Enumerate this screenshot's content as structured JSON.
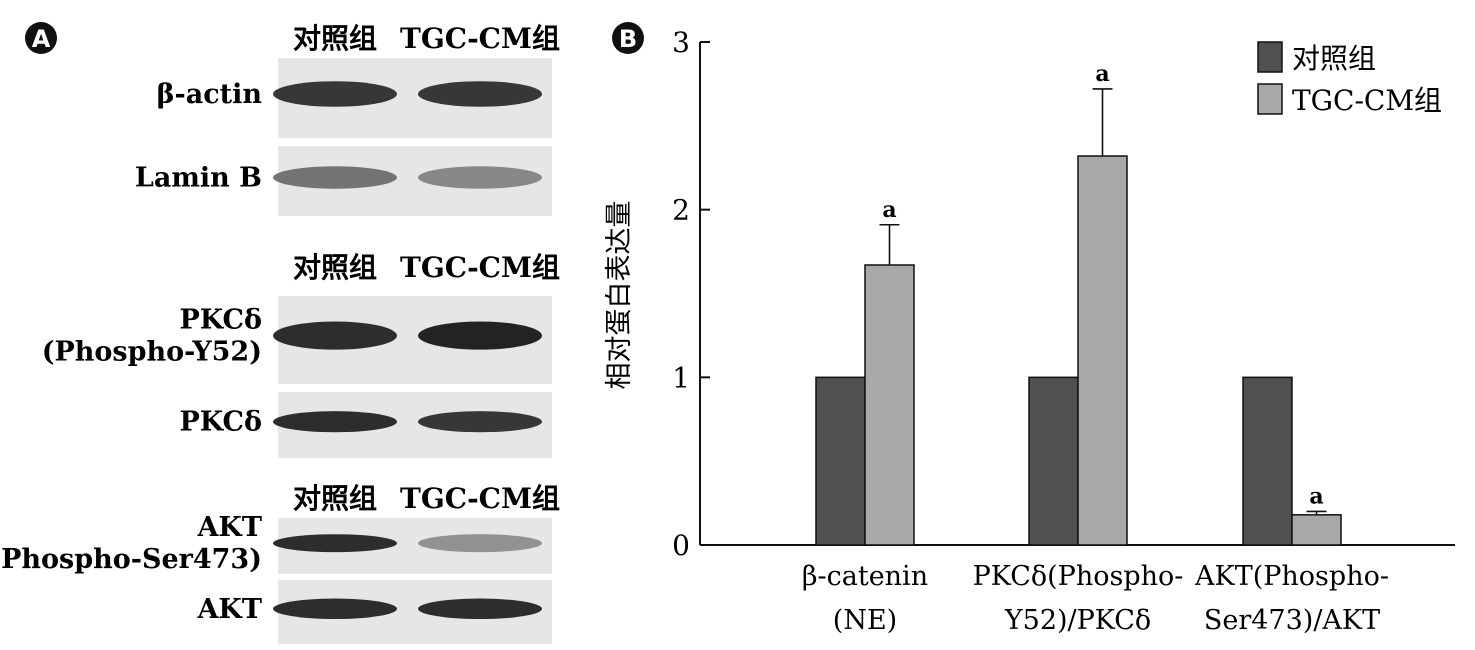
{
  "panel_a": {
    "label": "A",
    "groups": [
      {
        "header": [
          "对照组",
          "TGC-CM组"
        ],
        "blots": [
          {
            "label": [
              "β-actin"
            ],
            "intensity": [
              0.85,
              0.85
            ]
          },
          {
            "label": [
              "Lamin B"
            ],
            "intensity": [
              0.55,
              0.45
            ]
          }
        ]
      },
      {
        "header": [
          "对照组",
          "TGC-CM组"
        ],
        "blots": [
          {
            "label": [
              "PKCδ",
              "(Phospho-Y52)"
            ],
            "intensity": [
              0.9,
              0.95
            ]
          },
          {
            "label": [
              "PKCδ"
            ],
            "intensity": [
              0.9,
              0.85
            ]
          }
        ]
      },
      {
        "header": [
          "对照组",
          "TGC-CM组"
        ],
        "blots": [
          {
            "label": [
              "AKT",
              "(Phospho-Ser473)"
            ],
            "intensity": [
              0.9,
              0.4
            ]
          },
          {
            "label": [
              "AKT"
            ],
            "intensity": [
              0.9,
              0.9
            ]
          }
        ]
      }
    ]
  },
  "chart_data": {
    "panel_label": "B",
    "type": "bar",
    "ylabel": "相对蛋白表达量",
    "xlabel": "",
    "ylim": [
      0,
      3
    ],
    "yticks": [
      "0",
      "1",
      "2",
      "3"
    ],
    "categories": [
      [
        "β-catenin",
        "(NE)"
      ],
      [
        "PKCδ(Phospho-",
        "Y52)/PKCδ"
      ],
      [
        "AKT(Phospho-",
        "Ser473)/AKT"
      ]
    ],
    "series": [
      {
        "name": "对照组",
        "color": "#505050",
        "values": [
          1.0,
          1.0,
          1.0
        ],
        "errors": [
          0,
          0,
          0
        ],
        "marks": [
          "",
          "",
          ""
        ]
      },
      {
        "name": "TGC-CM组",
        "color": "#a8a8a8",
        "values": [
          1.67,
          2.32,
          0.18
        ],
        "errors": [
          0.24,
          0.4,
          0.02
        ],
        "marks": [
          "a",
          "a",
          "a"
        ]
      }
    ],
    "legend_position": "top-right",
    "grid": false
  }
}
